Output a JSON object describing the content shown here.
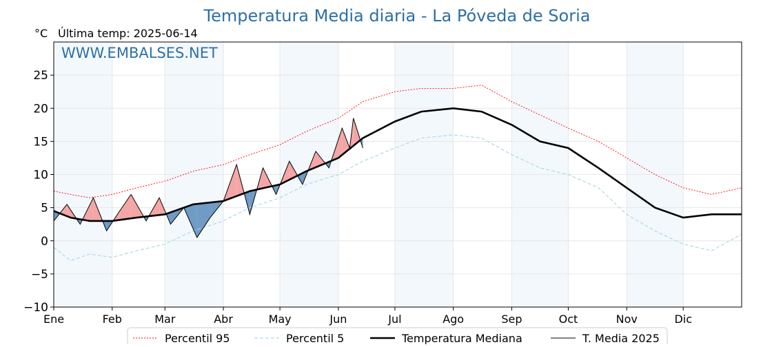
{
  "title": "Temperatura Media diaria - La Póveda de Soria",
  "unit_label": "°C",
  "last_temp_label": "Última temp: 2025-06-14",
  "watermark": "WWW.EMBALSES.NET",
  "colors": {
    "title": "#2c6fa6",
    "p95": "#ff0000",
    "p5": "#add8e6",
    "median": "#000000",
    "current": "#000000",
    "above_fill": "#f4a6a6",
    "below_fill": "#6f9bc4",
    "month_band": "#f3f8fd",
    "grid": "#e6e6e6"
  },
  "legend": [
    {
      "label": "Percentil 95",
      "style": "p95"
    },
    {
      "label": "Percentil 5",
      "style": "p5"
    },
    {
      "label": "Temperatura Mediana",
      "style": "median"
    },
    {
      "label": "T. Media 2025",
      "style": "current"
    }
  ],
  "chart_data": {
    "type": "line",
    "ylim": [
      -10,
      30
    ],
    "yticks": [
      "−10",
      "−5",
      "0",
      "5",
      "10",
      "15",
      "20",
      "25"
    ],
    "ytick_values": [
      -10,
      -5,
      0,
      5,
      10,
      15,
      20,
      25
    ],
    "months": [
      "Ene",
      "Feb",
      "Mar",
      "Abr",
      "May",
      "Jun",
      "Jul",
      "Ago",
      "Sep",
      "Oct",
      "Nov",
      "Dic"
    ],
    "month_start_days": [
      1,
      32,
      60,
      91,
      121,
      152,
      182,
      213,
      244,
      274,
      305,
      335
    ],
    "xlim": [
      1,
      366
    ],
    "grid": true,
    "legend_position": "bottom",
    "series": [
      {
        "name": "Percentil 95",
        "key": "p95",
        "x": [
          1,
          10,
          20,
          32,
          45,
          60,
          75,
          91,
          105,
          121,
          135,
          152,
          165,
          182,
          196,
          213,
          228,
          244,
          259,
          274,
          290,
          305,
          320,
          335,
          350,
          366
        ],
        "y": [
          7.5,
          7.0,
          6.5,
          7.0,
          8.0,
          9.0,
          10.5,
          11.5,
          13.0,
          14.5,
          16.5,
          18.5,
          21.0,
          22.5,
          23.0,
          23.0,
          23.5,
          21.0,
          19.0,
          17.0,
          15.0,
          12.5,
          10.0,
          8.0,
          7.0,
          8.0
        ]
      },
      {
        "name": "Percentil 5",
        "key": "p5",
        "x": [
          1,
          10,
          20,
          32,
          45,
          60,
          75,
          91,
          105,
          121,
          135,
          152,
          165,
          182,
          196,
          213,
          228,
          244,
          259,
          274,
          290,
          305,
          320,
          335,
          350,
          366
        ],
        "y": [
          -1.0,
          -3.0,
          -2.0,
          -2.5,
          -1.5,
          -0.5,
          1.5,
          3.0,
          5.0,
          6.5,
          8.5,
          10.0,
          12.0,
          14.0,
          15.5,
          16.0,
          15.5,
          13.0,
          11.0,
          10.0,
          8.0,
          4.0,
          1.5,
          -0.5,
          -1.5,
          1.0
        ]
      },
      {
        "name": "Temperatura Mediana",
        "key": "median",
        "x": [
          1,
          10,
          20,
          32,
          45,
          60,
          75,
          91,
          105,
          121,
          135,
          152,
          165,
          182,
          196,
          213,
          228,
          244,
          259,
          274,
          290,
          305,
          320,
          335,
          350,
          366
        ],
        "y": [
          4.5,
          3.5,
          3.0,
          3.0,
          3.5,
          4.0,
          5.5,
          6.0,
          7.5,
          8.5,
          10.5,
          12.5,
          15.5,
          18.0,
          19.5,
          20.0,
          19.5,
          17.5,
          15.0,
          14.0,
          11.0,
          8.0,
          5.0,
          3.5,
          4.0,
          4.0
        ]
      },
      {
        "name": "T. Media 2025",
        "key": "current",
        "x": [
          1,
          8,
          15,
          22,
          29,
          36,
          42,
          50,
          57,
          63,
          70,
          77,
          84,
          91,
          98,
          105,
          112,
          119,
          126,
          133,
          140,
          147,
          154,
          158,
          160,
          165
        ],
        "y": [
          3.0,
          5.5,
          2.5,
          6.5,
          1.5,
          4.5,
          7.0,
          3.0,
          6.5,
          2.5,
          5.0,
          0.5,
          3.5,
          6.0,
          11.5,
          4.0,
          11.0,
          7.0,
          12.0,
          8.5,
          13.5,
          11.0,
          17.0,
          14.0,
          18.5,
          14.0
        ]
      }
    ]
  }
}
